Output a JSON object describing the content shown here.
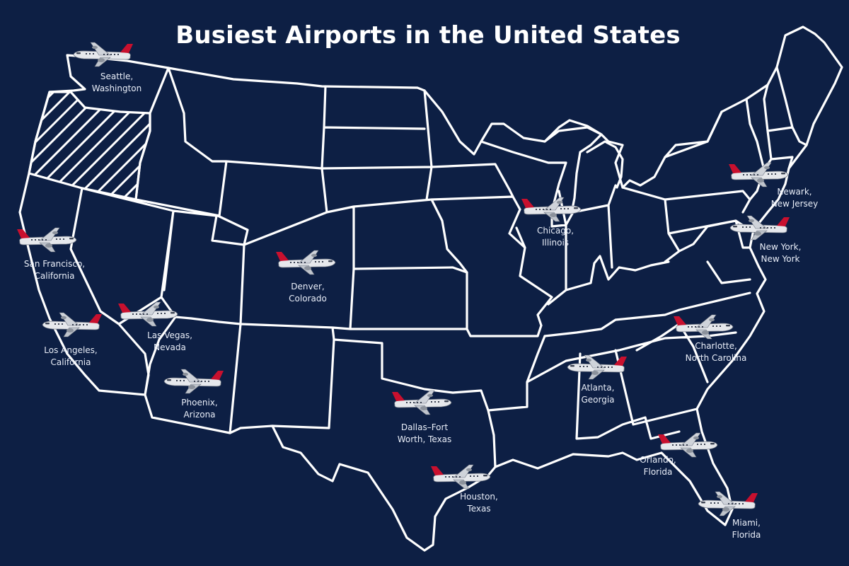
{
  "title": "Busiest Airports in the United States",
  "colors": {
    "background": "#0d1f44",
    "borders": "#ffffff",
    "label_text": "#e9eef8",
    "plane_body": "#e6e8ec",
    "plane_tail": "#c8102e"
  },
  "highlighted_state_pattern": "diagonal-hatch",
  "airports": [
    {
      "id": "seattle",
      "line1": "Seattle,",
      "line2": "Washington",
      "icon": "airplane-icon"
    },
    {
      "id": "san-francisco",
      "line1": "San Francisco,",
      "line2": "California",
      "icon": "airplane-icon"
    },
    {
      "id": "los-angeles",
      "line1": "Los Angeles,",
      "line2": "California",
      "icon": "airplane-icon"
    },
    {
      "id": "las-vegas",
      "line1": "Las Vegas,",
      "line2": "Nevada",
      "icon": "airplane-icon"
    },
    {
      "id": "phoenix",
      "line1": "Phoenix,",
      "line2": "Arizona",
      "icon": "airplane-icon"
    },
    {
      "id": "denver",
      "line1": "Denver,",
      "line2": "Colorado",
      "icon": "airplane-icon"
    },
    {
      "id": "dallas",
      "line1": "Dallas–Fort",
      "line2": "Worth, Texas",
      "icon": "airplane-icon"
    },
    {
      "id": "houston",
      "line1": "Houston,",
      "line2": "Texas",
      "icon": "airplane-icon"
    },
    {
      "id": "chicago",
      "line1": "Chicago,",
      "line2": "Illinois",
      "icon": "airplane-icon"
    },
    {
      "id": "atlanta",
      "line1": "Atlanta,",
      "line2": "Georgia",
      "icon": "airplane-icon"
    },
    {
      "id": "charlotte",
      "line1": "Charlotte,",
      "line2": "North Carolina",
      "icon": "airplane-icon"
    },
    {
      "id": "orlando",
      "line1": "Orlando,",
      "line2": "Florida",
      "icon": "airplane-icon"
    },
    {
      "id": "miami",
      "line1": "Miami,",
      "line2": "Florida",
      "icon": "airplane-icon"
    },
    {
      "id": "newark",
      "line1": "Newark,",
      "line2": "New Jersey",
      "icon": "airplane-icon"
    },
    {
      "id": "new-york",
      "line1": "New York,",
      "line2": "New York",
      "icon": "airplane-icon"
    }
  ]
}
